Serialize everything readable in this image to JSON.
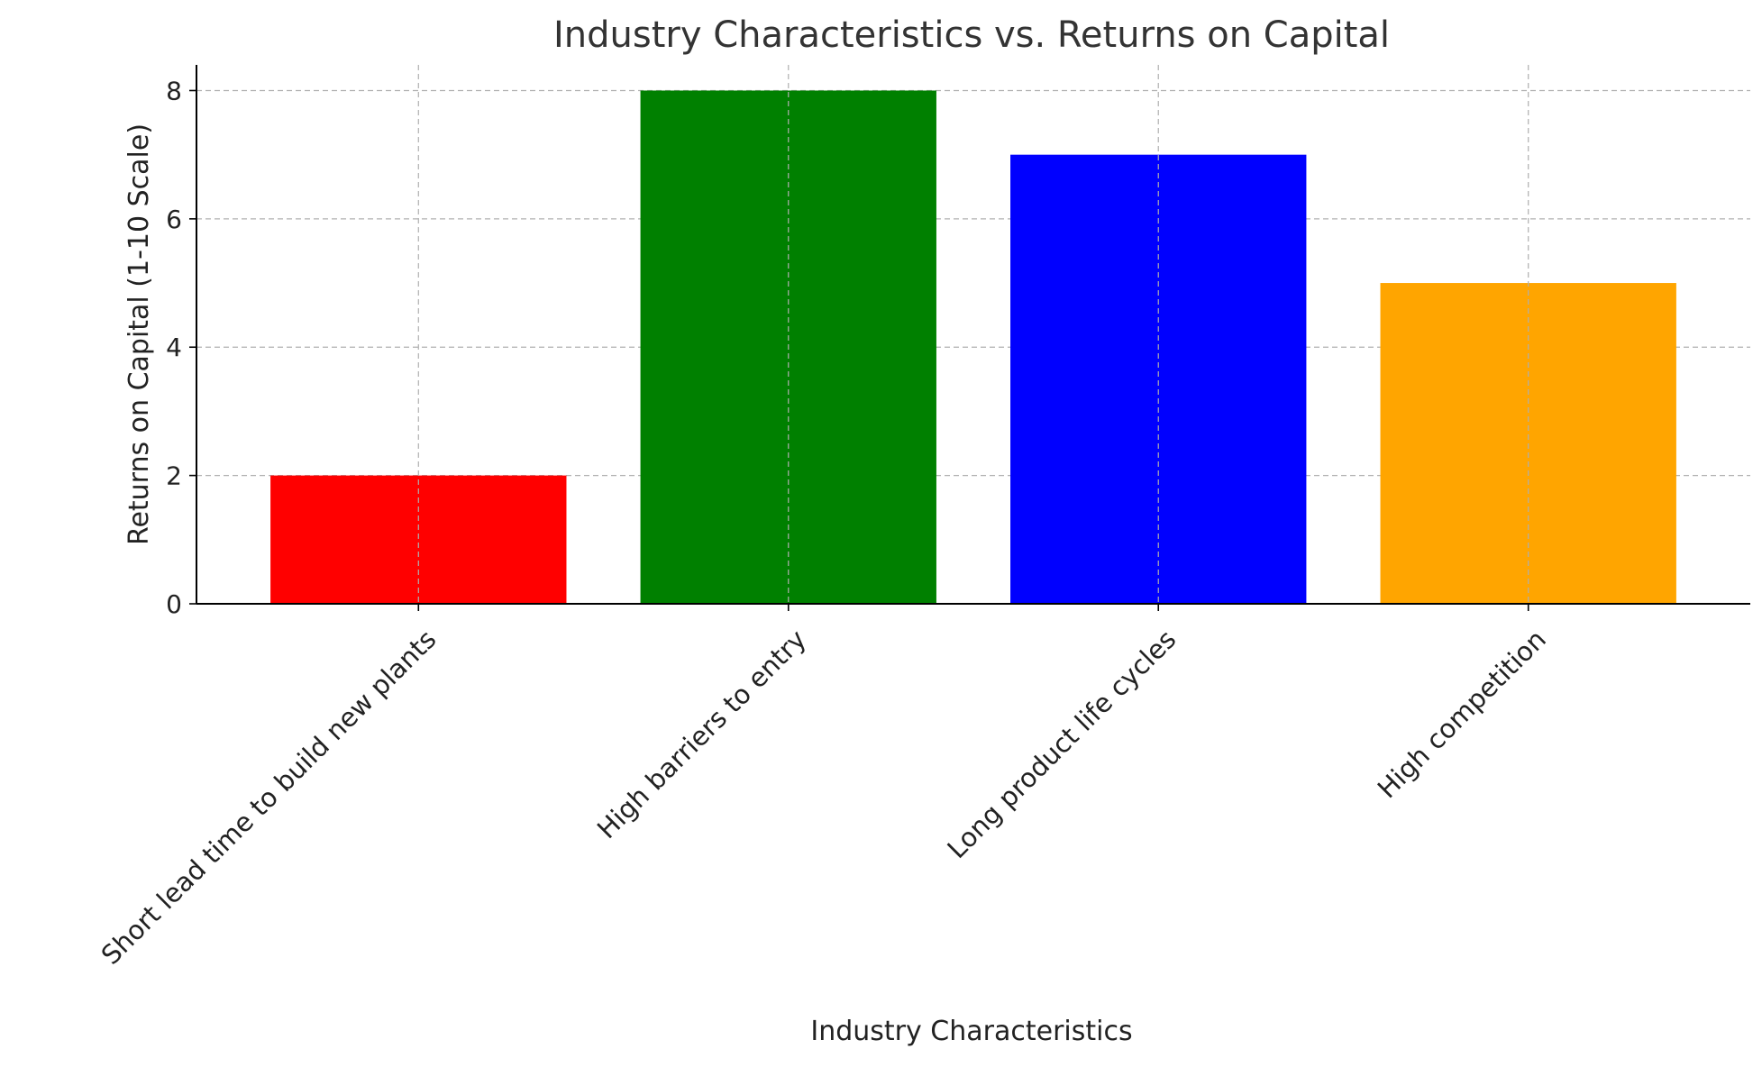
{
  "chart_data": {
    "type": "bar",
    "title": "Industry Characteristics vs. Returns on Capital",
    "xlabel": "Industry Characteristics",
    "ylabel": "Returns on Capital (1-10 Scale)",
    "categories": [
      "Short lead time to build new plants",
      "High barriers to entry",
      "Long product life cycles",
      "High competition"
    ],
    "values": [
      2,
      8,
      7,
      5
    ],
    "colors": [
      "#ff0000",
      "#008000",
      "#0000ff",
      "#ffa500"
    ],
    "ylim": [
      0,
      8.4
    ],
    "yticks": [
      0,
      2,
      4,
      6,
      8
    ],
    "grid": true,
    "legend": "none"
  }
}
